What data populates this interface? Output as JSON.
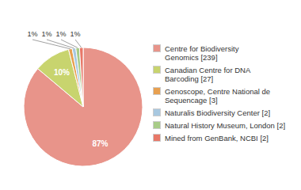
{
  "chart_data": {
    "type": "pie",
    "categories": [
      "Centre for Biodiversity\nGenomics [239]",
      "Canadian Centre for DNA\nBarcoding [27]",
      "Genoscope, Centre National de\nSequencage [3]",
      "Naturalis Biodiversity Center [2]",
      "Natural History Museum, London [2]",
      "Mined from GenBank, NCBI [2]"
    ],
    "values": [
      87,
      10,
      1,
      1,
      1,
      1
    ],
    "value_labels": [
      "87%",
      "10%",
      "1%",
      "1%",
      "1%",
      "1%"
    ],
    "colors": [
      "#e8948a",
      "#c8d46e",
      "#e8a050",
      "#a8c8e0",
      "#a8cc88",
      "#e87868"
    ],
    "data_labels": true,
    "legend": "right"
  }
}
